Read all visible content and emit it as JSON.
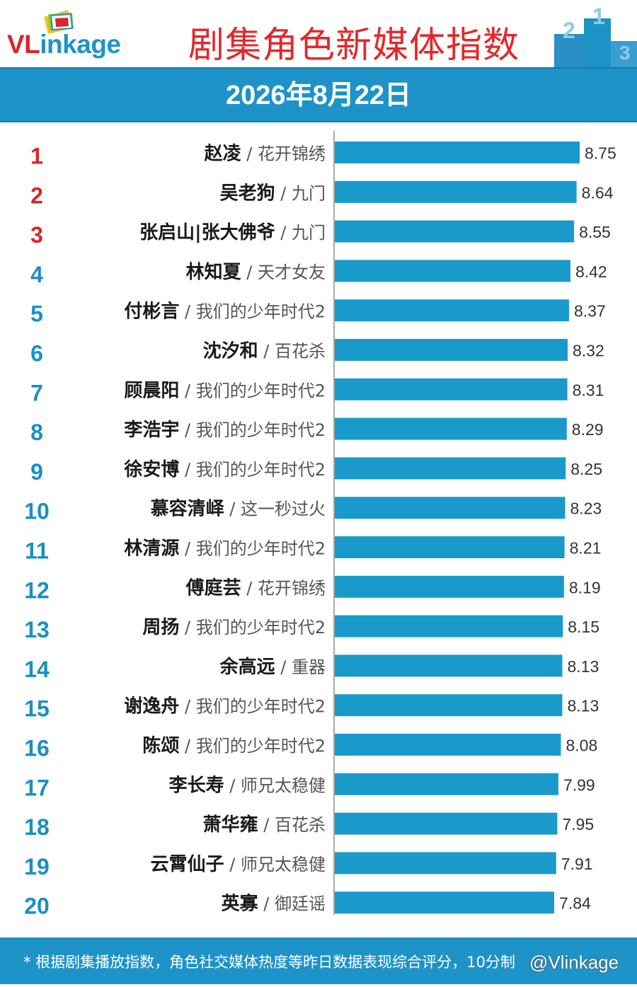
{
  "header": {
    "logo_text_red": "VL",
    "logo_text_blue": "inkage",
    "title": "剧集角色新媒体指数"
  },
  "date_label": "2026年8月22日",
  "footer": {
    "note": "* 根据剧集播放指数，角色社交媒体热度等昨日数据表现综合评分，10分制",
    "watermark": "@Vlinkage"
  },
  "colors": {
    "bar": "#1a9acb",
    "band": "#1d93c8",
    "title_red": "#e2282b",
    "rank_top3": "#d8262a",
    "rank_other": "#1a8fc4"
  },
  "chart_data": {
    "type": "bar",
    "orientation": "horizontal",
    "title": "",
    "xlabel": "",
    "ylabel": "",
    "xlim": [
      0,
      8.75
    ],
    "grid": false,
    "legend": "none",
    "ranks": [
      "1",
      "2",
      "3",
      "4",
      "5",
      "6",
      "7",
      "8",
      "9",
      "10",
      "11",
      "12",
      "13",
      "14",
      "15",
      "16",
      "17",
      "18",
      "19",
      "20"
    ],
    "names": [
      "赵凌",
      "吴老狗",
      "张启山|张大佛爷",
      "林知夏",
      "付彬言",
      "沈汐和",
      "顾晨阳",
      "李浩宇",
      "徐安博",
      "慕容清峄",
      "林清源",
      "傅庭芸",
      "周扬",
      "余高远",
      "谢逸舟",
      "陈颂",
      "李长寿",
      "萧华雍",
      "云霄仙子",
      "英寡"
    ],
    "dramas": [
      "花开锦绣",
      "九门",
      "九门",
      "天才女友",
      "我们的少年时代2",
      "百花杀",
      "我们的少年时代2",
      "我们的少年时代2",
      "我们的少年时代2",
      "这一秒过火",
      "我们的少年时代2",
      "花开锦绣",
      "我们的少年时代2",
      "重器",
      "我们的少年时代2",
      "我们的少年时代2",
      "师兄太稳健",
      "百花杀",
      "师兄太稳健",
      "御廷谣"
    ],
    "values": [
      8.75,
      8.64,
      8.55,
      8.42,
      8.37,
      8.32,
      8.31,
      8.29,
      8.25,
      8.23,
      8.21,
      8.19,
      8.15,
      8.13,
      8.13,
      8.08,
      7.99,
      7.95,
      7.91,
      7.84
    ],
    "value_labels": [
      "8.75",
      "8.64",
      "8.55",
      "8.42",
      "8.37",
      "8.32",
      "8.31",
      "8.29",
      "8.25",
      "8.23",
      "8.21",
      "8.19",
      "8.15",
      "8.13",
      "8.13",
      "8.08",
      "7.99",
      "7.95",
      "7.91",
      "7.84"
    ]
  }
}
